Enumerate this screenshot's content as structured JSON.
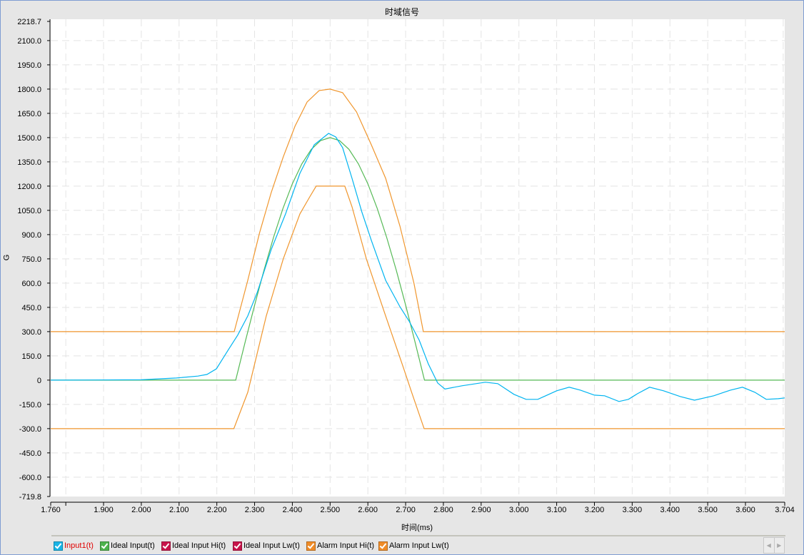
{
  "chart_data": {
    "type": "line",
    "title": "时域信号",
    "xlabel": "时间(ms)",
    "ylabel": "G",
    "xlim": [
      1.76,
      3.704
    ],
    "ylim": [
      -719.8,
      2218.7
    ],
    "grid": true,
    "legend_position": "bottom",
    "x_tick_labels": [
      "1.760",
      "1.900",
      "2.000",
      "2.100",
      "2.200",
      "2.300",
      "2.400",
      "2.500",
      "2.600",
      "2.700",
      "2.800",
      "2.900",
      "3.000",
      "3.100",
      "3.200",
      "3.300",
      "3.400",
      "3.500",
      "3.600",
      "3.704"
    ],
    "y_tick_labels": [
      "2218.7",
      "2100.0",
      "1950.0",
      "1800.0",
      "1650.0",
      "1500.0",
      "1350.0",
      "1200.0",
      "1050.0",
      "900.0",
      "750.0",
      "600.0",
      "450.0",
      "300.0",
      "150.0",
      "0",
      "-150.0",
      "-300.0",
      "-450.0",
      "-600.0",
      "-719.8"
    ],
    "series": [
      {
        "name": "Input1(t)",
        "color": "#00b4f0",
        "checked": true,
        "points": [
          [
            1.76,
            0
          ],
          [
            2.0,
            2
          ],
          [
            2.05,
            8
          ],
          [
            2.093,
            13
          ],
          [
            2.15,
            25
          ],
          [
            2.174,
            35
          ],
          [
            2.199,
            70
          ],
          [
            2.231,
            190
          ],
          [
            2.255,
            278
          ],
          [
            2.282,
            397
          ],
          [
            2.307,
            543
          ],
          [
            2.344,
            807
          ],
          [
            2.382,
            1028
          ],
          [
            2.42,
            1279
          ],
          [
            2.458,
            1456
          ],
          [
            2.496,
            1526
          ],
          [
            2.515,
            1504
          ],
          [
            2.533,
            1438
          ],
          [
            2.558,
            1248
          ],
          [
            2.584,
            1041
          ],
          [
            2.609,
            865
          ],
          [
            2.647,
            617
          ],
          [
            2.685,
            454
          ],
          [
            2.709,
            366
          ],
          [
            2.736,
            247
          ],
          [
            2.76,
            101
          ],
          [
            2.785,
            -18
          ],
          [
            2.804,
            -55
          ],
          [
            2.849,
            -35
          ],
          [
            2.911,
            -13
          ],
          [
            2.944,
            -22
          ],
          [
            2.987,
            -88
          ],
          [
            3.019,
            -119
          ],
          [
            3.05,
            -119
          ],
          [
            3.1,
            -66
          ],
          [
            3.133,
            -44
          ],
          [
            3.163,
            -62
          ],
          [
            3.2,
            -93
          ],
          [
            3.227,
            -97
          ],
          [
            3.265,
            -132
          ],
          [
            3.29,
            -119
          ],
          [
            3.314,
            -84
          ],
          [
            3.346,
            -44
          ],
          [
            3.383,
            -66
          ],
          [
            3.427,
            -101
          ],
          [
            3.465,
            -124
          ],
          [
            3.516,
            -97
          ],
          [
            3.56,
            -62
          ],
          [
            3.592,
            -44
          ],
          [
            3.625,
            -75
          ],
          [
            3.655,
            -119
          ],
          [
            3.687,
            -115
          ],
          [
            3.704,
            -110
          ]
        ]
      },
      {
        "name": "Ideal Input(t)",
        "color": "#55b955",
        "checked": true,
        "points": [
          [
            1.76,
            0
          ],
          [
            2.25,
            0
          ],
          [
            2.275,
            235
          ],
          [
            2.3,
            464
          ],
          [
            2.325,
            681
          ],
          [
            2.35,
            882
          ],
          [
            2.375,
            1061
          ],
          [
            2.4,
            1214
          ],
          [
            2.425,
            1337
          ],
          [
            2.45,
            1427
          ],
          [
            2.475,
            1482
          ],
          [
            2.5,
            1500
          ],
          [
            2.525,
            1482
          ],
          [
            2.55,
            1427
          ],
          [
            2.575,
            1337
          ],
          [
            2.6,
            1214
          ],
          [
            2.625,
            1061
          ],
          [
            2.65,
            882
          ],
          [
            2.675,
            681
          ],
          [
            2.7,
            464
          ],
          [
            2.725,
            235
          ],
          [
            2.75,
            0
          ],
          [
            3.704,
            0
          ]
        ]
      },
      {
        "name": "Ideal Input Hi(t)",
        "color": "#c8144b",
        "checked": true,
        "points": []
      },
      {
        "name": "Ideal Input Lw(t)",
        "color": "#c8144b",
        "checked": true,
        "points": []
      },
      {
        "name": "Alarm Input Hi(t)",
        "color": "#f0962d",
        "checked": true,
        "points": [
          [
            1.76,
            300
          ],
          [
            2.246,
            300
          ],
          [
            2.282,
            617
          ],
          [
            2.313,
            909
          ],
          [
            2.344,
            1160
          ],
          [
            2.376,
            1381
          ],
          [
            2.407,
            1570
          ],
          [
            2.439,
            1720
          ],
          [
            2.471,
            1791
          ],
          [
            2.5,
            1800
          ],
          [
            2.533,
            1778
          ],
          [
            2.57,
            1659
          ],
          [
            2.609,
            1456
          ],
          [
            2.647,
            1248
          ],
          [
            2.685,
            953
          ],
          [
            2.722,
            600
          ],
          [
            2.747,
            300
          ],
          [
            3.704,
            300
          ]
        ]
      },
      {
        "name": "Alarm Input Lw(t)",
        "color": "#f0962d",
        "checked": true,
        "points": [
          [
            1.76,
            -300
          ],
          [
            2.245,
            -300
          ],
          [
            2.282,
            -75
          ],
          [
            2.331,
            397
          ],
          [
            2.376,
            750
          ],
          [
            2.42,
            1028
          ],
          [
            2.445,
            1129
          ],
          [
            2.463,
            1200
          ],
          [
            2.539,
            1200
          ],
          [
            2.558,
            1072
          ],
          [
            2.596,
            750
          ],
          [
            2.647,
            397
          ],
          [
            2.697,
            57
          ],
          [
            2.716,
            -75
          ],
          [
            2.749,
            -300
          ],
          [
            3.704,
            -300
          ]
        ]
      }
    ]
  },
  "legend": {
    "items": [
      "Input1(t)",
      "Ideal Input(t)",
      "Ideal Input Hi(t)",
      "Ideal Input Lw(t)",
      "Alarm Input Hi(t)",
      "Alarm Input Lw(t)"
    ],
    "checkbox_colors": [
      "#19b4e6",
      "#4db34d",
      "#c8144b",
      "#c8144b",
      "#f08c28",
      "#f08c28"
    ],
    "active_label_color": "#e00000"
  },
  "scroll": {
    "left_icon": "◀",
    "right_icon": "▶"
  }
}
